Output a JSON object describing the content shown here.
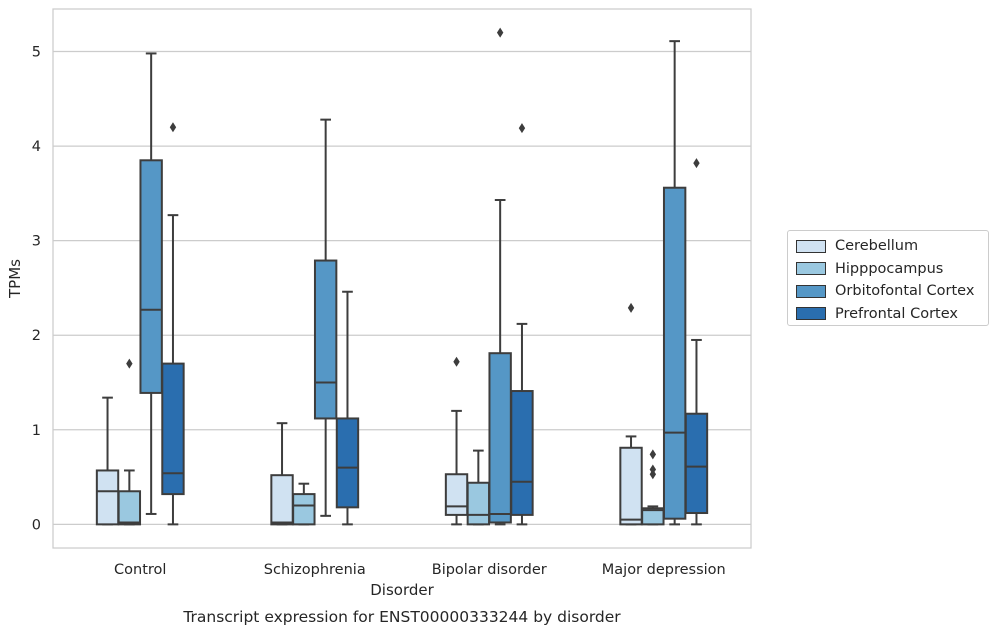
{
  "chart_data": {
    "type": "box",
    "title": "Transcript expression for ENST00000333244 by disorder",
    "xlabel": "Disorder",
    "ylabel": "TPMs",
    "ylim": [
      -0.25,
      5.45
    ],
    "yticks": [
      0,
      1,
      2,
      3,
      4,
      5
    ],
    "grid": "horizontal",
    "legend_position": "right",
    "categories": [
      "Control",
      "Schizophrenia",
      "Bipolar disorder",
      "Major depression"
    ],
    "series": [
      {
        "name": "Cerebellum",
        "color": "#d0e2f2",
        "boxes": [
          {
            "whislo": 0.0,
            "q1": 0.0,
            "med": 0.35,
            "q3": 0.57,
            "whishi": 1.34,
            "fliers": []
          },
          {
            "whislo": 0.0,
            "q1": 0.0,
            "med": 0.02,
            "q3": 0.52,
            "whishi": 1.07,
            "fliers": []
          },
          {
            "whislo": 0.0,
            "q1": 0.1,
            "med": 0.19,
            "q3": 0.53,
            "whishi": 1.2,
            "fliers": [
              1.72
            ]
          },
          {
            "whislo": 0.0,
            "q1": 0.0,
            "med": 0.05,
            "q3": 0.81,
            "whishi": 0.93,
            "fliers": [
              2.29
            ]
          }
        ]
      },
      {
        "name": "Hipppocampus",
        "color": "#9ac8e0",
        "boxes": [
          {
            "whislo": 0.0,
            "q1": 0.0,
            "med": 0.02,
            "q3": 0.35,
            "whishi": 0.57,
            "fliers": [
              1.7
            ]
          },
          {
            "whislo": 0.0,
            "q1": 0.0,
            "med": 0.2,
            "q3": 0.32,
            "whishi": 0.43,
            "fliers": []
          },
          {
            "whislo": 0.0,
            "q1": 0.0,
            "med": 0.1,
            "q3": 0.44,
            "whishi": 0.78,
            "fliers": []
          },
          {
            "whislo": 0.0,
            "q1": 0.0,
            "med": 0.15,
            "q3": 0.17,
            "whishi": 0.19,
            "fliers": [
              0.53,
              0.58,
              0.74
            ]
          }
        ]
      },
      {
        "name": "Orbitofontal Cortex",
        "color": "#5597c6",
        "boxes": [
          {
            "whislo": 0.11,
            "q1": 1.39,
            "med": 2.27,
            "q3": 3.85,
            "whishi": 4.98,
            "fliers": []
          },
          {
            "whislo": 0.09,
            "q1": 1.12,
            "med": 1.5,
            "q3": 2.79,
            "whishi": 4.28,
            "fliers": []
          },
          {
            "whislo": 0.0,
            "q1": 0.02,
            "med": 0.11,
            "q3": 1.81,
            "whishi": 3.43,
            "fliers": [
              5.2
            ]
          },
          {
            "whislo": 0.0,
            "q1": 0.06,
            "med": 0.97,
            "q3": 3.56,
            "whishi": 5.11,
            "fliers": []
          }
        ]
      },
      {
        "name": "Prefrontal Cortex",
        "color": "#2a6eaf",
        "boxes": [
          {
            "whislo": 0.0,
            "q1": 0.32,
            "med": 0.54,
            "q3": 1.7,
            "whishi": 3.27,
            "fliers": [
              4.2
            ]
          },
          {
            "whislo": 0.0,
            "q1": 0.18,
            "med": 0.6,
            "q3": 1.12,
            "whishi": 2.46,
            "fliers": []
          },
          {
            "whislo": 0.0,
            "q1": 0.1,
            "med": 0.45,
            "q3": 1.41,
            "whishi": 2.12,
            "fliers": [
              4.19
            ]
          },
          {
            "whislo": 0.0,
            "q1": 0.12,
            "med": 0.61,
            "q3": 1.17,
            "whishi": 1.95,
            "fliers": [
              3.82
            ]
          }
        ]
      }
    ]
  }
}
